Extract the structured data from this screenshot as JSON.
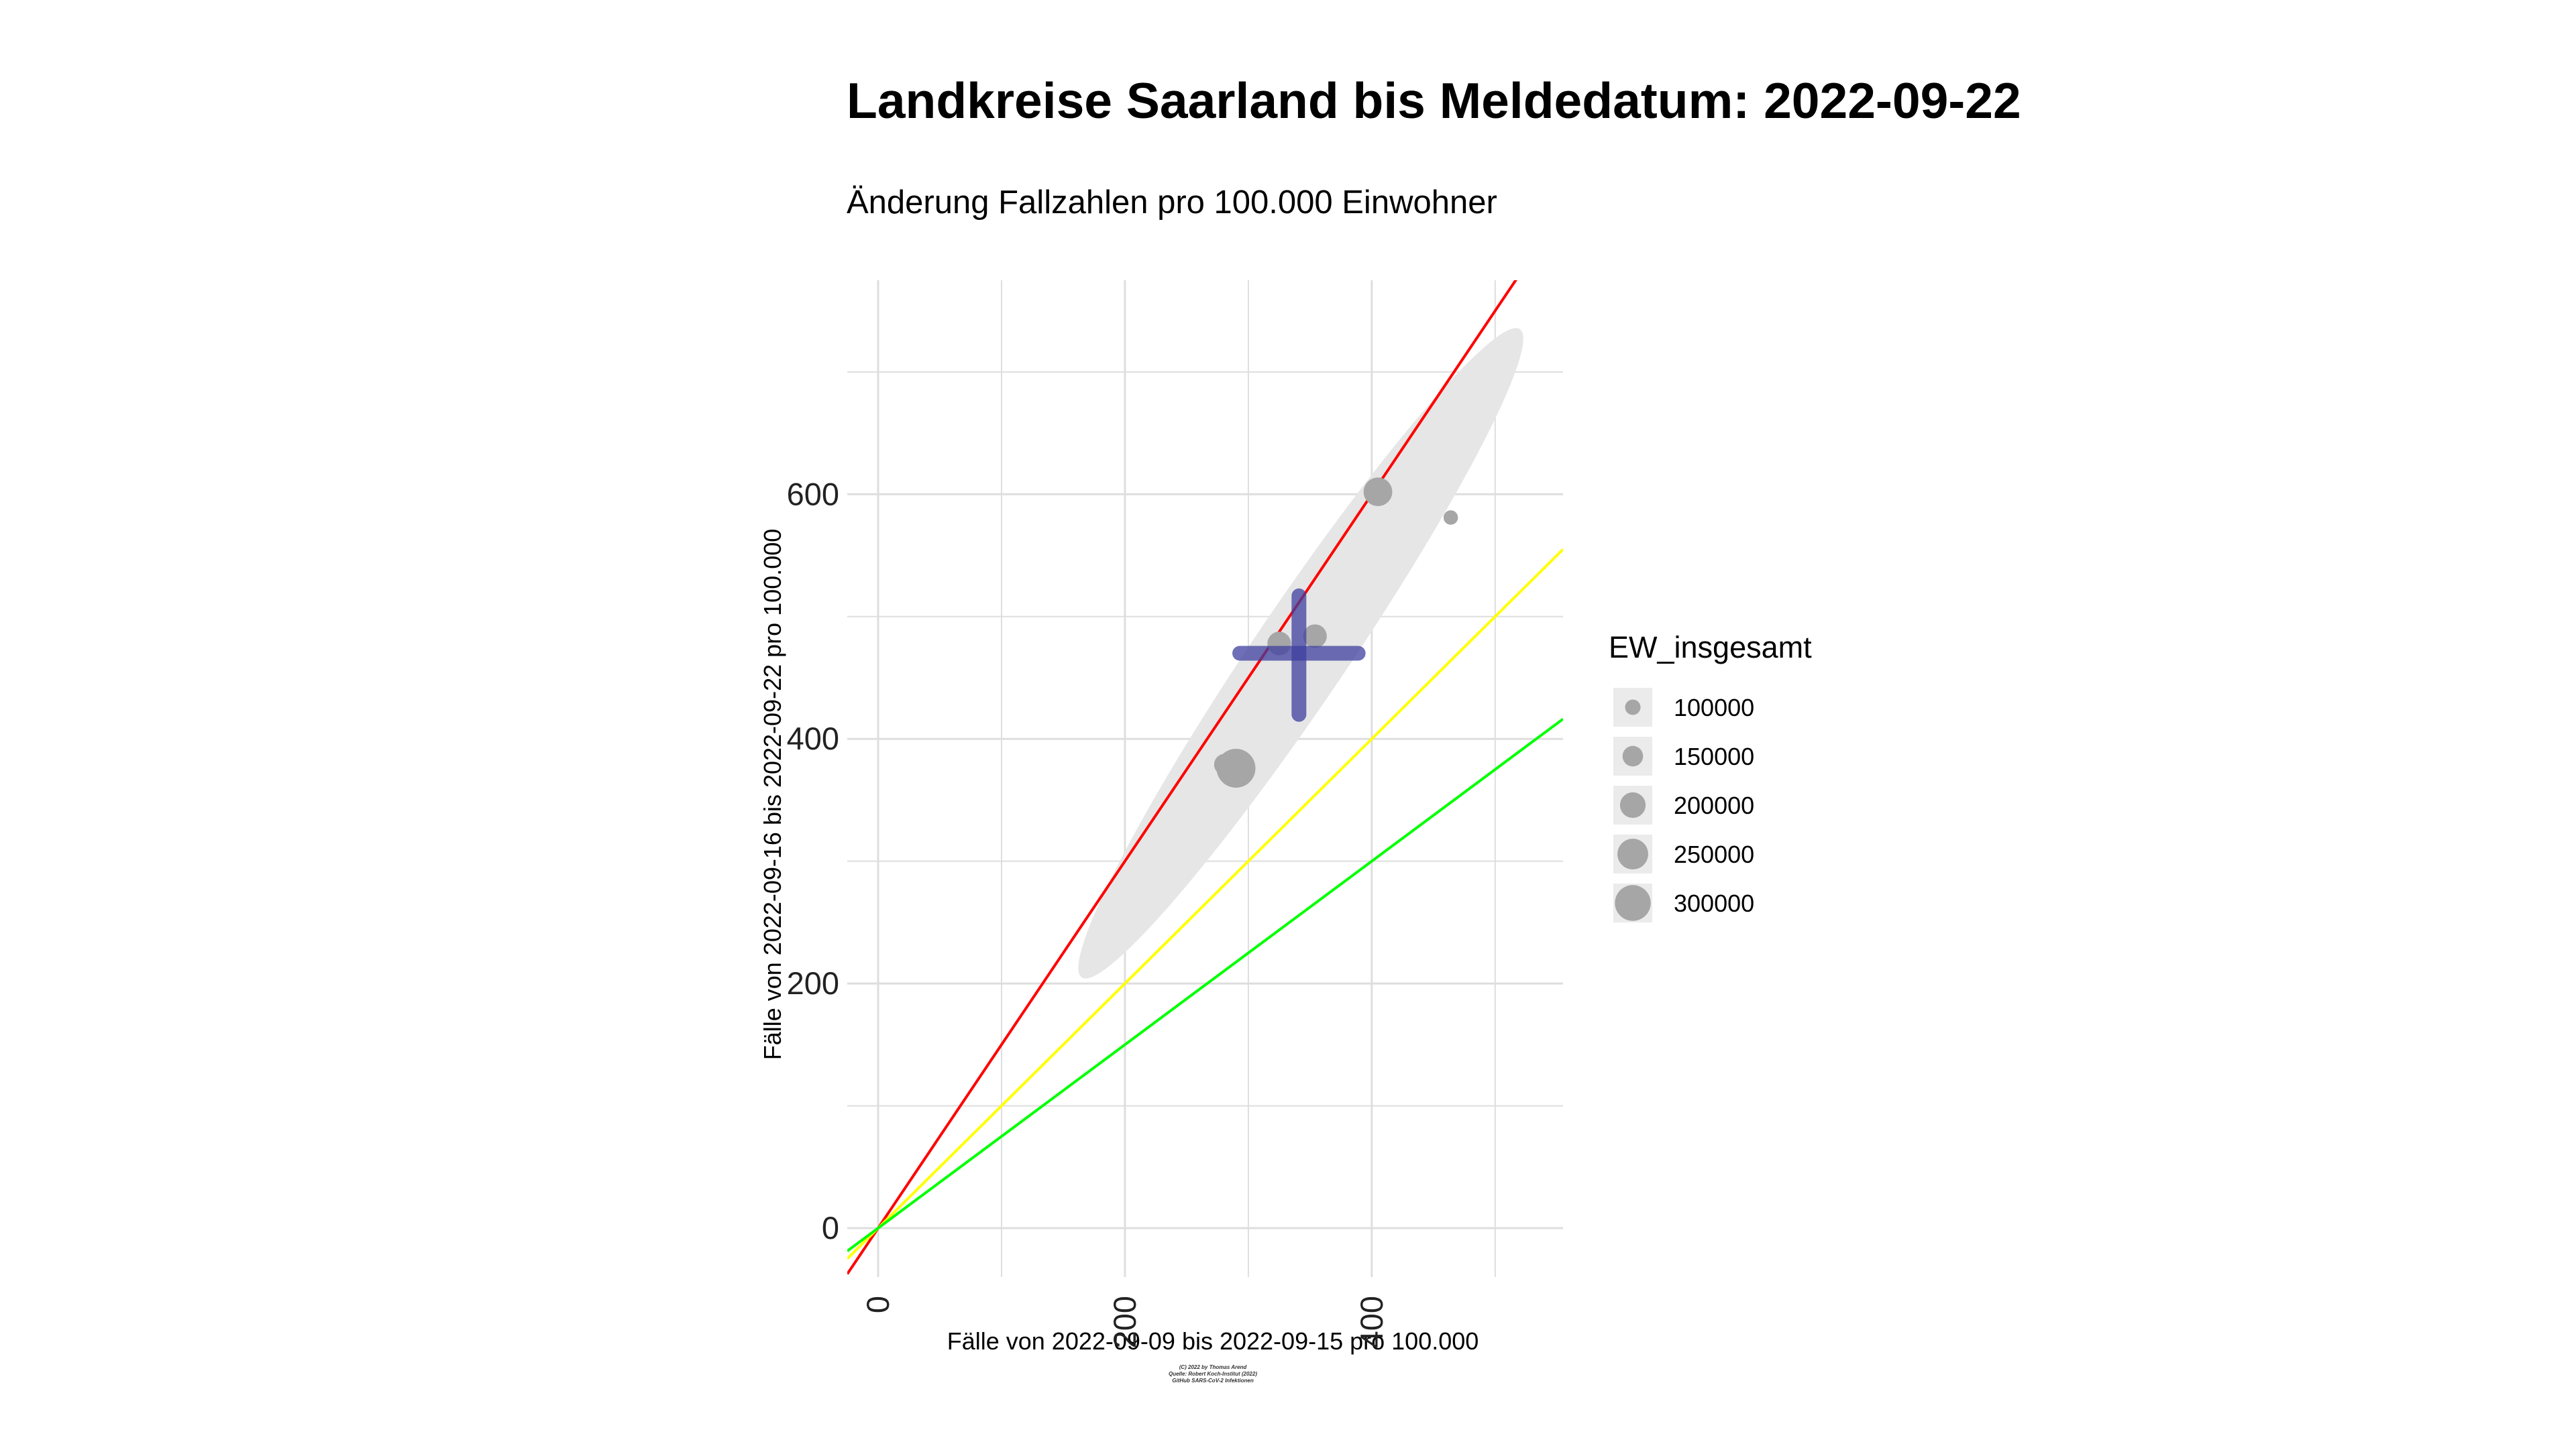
{
  "chart_data": {
    "type": "scatter",
    "title": "Landkreise Saarland bis Meldedatum: 2022-09-22",
    "subtitle": "Änderung Fallzahlen pro 100.000 Einwohner",
    "xlabel": "Fälle von 2022-09-09 bis 2022-09-15 pro 100.000",
    "ylabel": "Fälle von 2022-09-16 bis 2022-09-22 pro 100.000",
    "xlim": [
      -25,
      555
    ],
    "ylim": [
      -40,
      775
    ],
    "x_ticks": [
      0,
      200,
      400
    ],
    "y_ticks": [
      0,
      200,
      400,
      600
    ],
    "grid": true,
    "legend": {
      "title": "EW_insgesamt",
      "position": "right",
      "entries": [
        {
          "label": "100000",
          "value": 100000
        },
        {
          "label": "150000",
          "value": 150000
        },
        {
          "label": "200000",
          "value": 200000
        },
        {
          "label": "250000",
          "value": 250000
        },
        {
          "label": "300000",
          "value": 300000
        }
      ]
    },
    "points": [
      {
        "x": 405,
        "y": 602,
        "ew": 230000
      },
      {
        "x": 464,
        "y": 581,
        "ew": 90000
      },
      {
        "x": 325,
        "y": 478,
        "ew": 180000
      },
      {
        "x": 354,
        "y": 484,
        "ew": 180000
      },
      {
        "x": 281,
        "y": 379,
        "ew": 160000
      },
      {
        "x": 290,
        "y": 376,
        "ew": 330000
      }
    ],
    "mean_cross": {
      "x": 341,
      "y": 470,
      "x_range": [
        293,
        389
      ],
      "y_range": [
        420,
        517
      ],
      "color": "#3d3f9e"
    },
    "ellipse": {
      "points": [
        [
          165,
          205
        ],
        [
          520,
          735
        ]
      ],
      "color": "#e6e6e6"
    },
    "reference_lines": [
      {
        "slope": 1.5,
        "color": "#ff0000"
      },
      {
        "slope": 1.0,
        "color": "#ffff00"
      },
      {
        "slope": 0.75,
        "color": "#00ff00"
      }
    ],
    "caption": [
      "(C) 2022 by Thomas Arend",
      "Quelle: Robert Koch-Institut (2022)",
      "GitHub SARS-CoV-2 Infektionen"
    ]
  }
}
